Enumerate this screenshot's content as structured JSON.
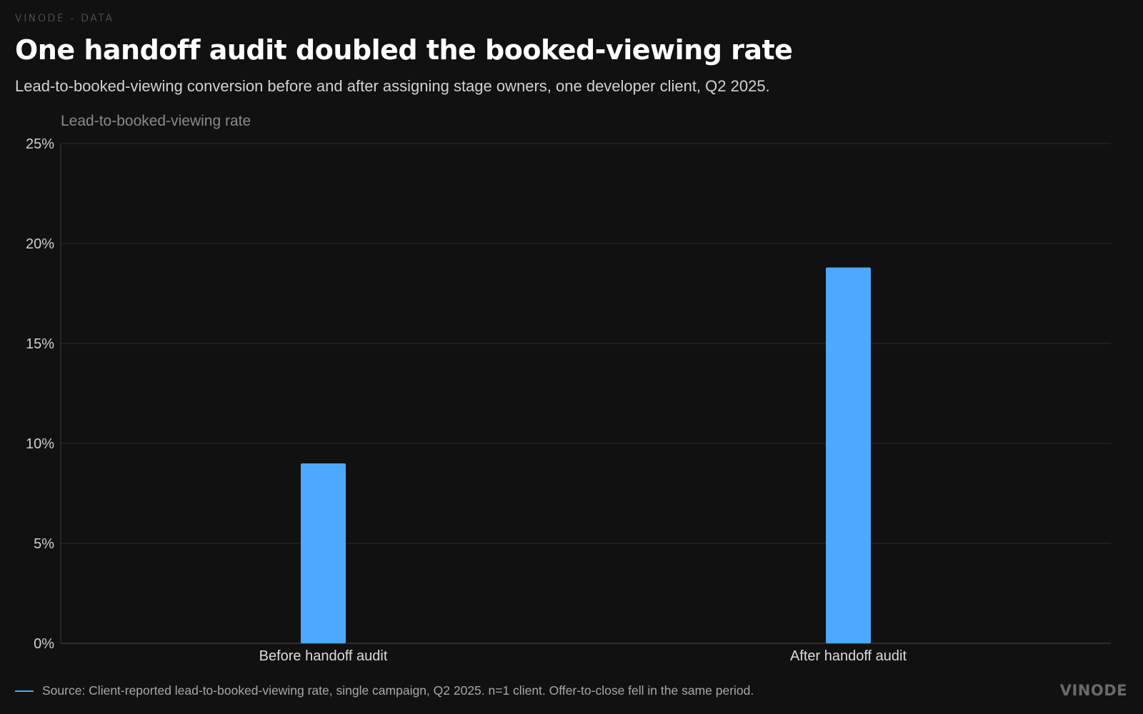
{
  "header": {
    "eyebrow": "VINODE - DATA",
    "title": "One handoff audit doubled the booked-viewing rate",
    "subtitle": "Lead-to-booked-viewing conversion before and after assigning stage owners, one developer client, Q2 2025."
  },
  "chart_data": {
    "type": "bar",
    "ylabel": "Lead-to-booked-viewing rate",
    "xlabel": "",
    "categories": [
      "Before handoff audit",
      "After handoff audit"
    ],
    "values": [
      9.0,
      18.8
    ],
    "ylim": [
      0,
      25
    ],
    "yticks": [
      0,
      5,
      10,
      15,
      20,
      25
    ],
    "ytick_labels": [
      "0%",
      "5%",
      "10%",
      "15%",
      "20%",
      "25%"
    ],
    "grid": "horizontal",
    "legend": "none",
    "bar_color": "#4da9ff"
  },
  "footer": {
    "source": "Source: Client-reported lead-to-booked-viewing rate, single campaign, Q2 2025. n=1 client. Offer-to-close fell in the same period.",
    "brand": "VINODE"
  },
  "colors": {
    "background": "#111111",
    "accent": "#4da9ff"
  }
}
